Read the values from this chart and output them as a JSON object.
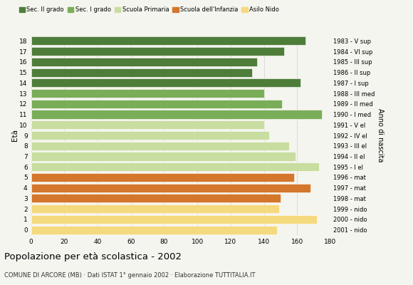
{
  "ages": [
    0,
    1,
    2,
    3,
    4,
    5,
    6,
    7,
    8,
    9,
    10,
    11,
    12,
    13,
    14,
    15,
    16,
    17,
    18
  ],
  "values": [
    148,
    172,
    149,
    150,
    168,
    158,
    173,
    159,
    155,
    143,
    140,
    175,
    151,
    140,
    162,
    133,
    136,
    152,
    165
  ],
  "right_labels": [
    "2001 - nido",
    "2000 - nido",
    "1999 - nido",
    "1998 - mat",
    "1997 - mat",
    "1996 - mat",
    "1995 - I el",
    "1994 - II el",
    "1993 - III el",
    "1992 - IV el",
    "1991 - V el",
    "1990 - I med",
    "1989 - II med",
    "1988 - III med",
    "1987 - I sup",
    "1986 - II sup",
    "1985 - III sup",
    "1984 - VI sup",
    "1983 - V sup"
  ],
  "categories": {
    "Sec. II grado": {
      "ages": [
        14,
        15,
        16,
        17,
        18
      ],
      "color": "#4e7d3a"
    },
    "Sec. I grado": {
      "ages": [
        11,
        12,
        13
      ],
      "color": "#7aad58"
    },
    "Scuola Primaria": {
      "ages": [
        6,
        7,
        8,
        9,
        10
      ],
      "color": "#c8dda0"
    },
    "Scuola dell'Infanzia": {
      "ages": [
        3,
        4,
        5
      ],
      "color": "#d4762b"
    },
    "Asilo Nido": {
      "ages": [
        0,
        1,
        2
      ],
      "color": "#f5d97e"
    }
  },
  "legend_colors": [
    "#4e7d3a",
    "#7aad58",
    "#c8dda0",
    "#d4762b",
    "#f5d97e"
  ],
  "legend_labels": [
    "Sec. II grado",
    "Sec. I grado",
    "Scuola Primaria",
    "Scuola dell'Infanzia",
    "Asilo Nido"
  ],
  "xlim": [
    0,
    180
  ],
  "xticks": [
    0,
    20,
    40,
    60,
    80,
    100,
    120,
    140,
    160,
    180
  ],
  "title": "Popolazione per età scolastica - 2002",
  "subtitle": "COMUNE DI ARCORE (MB) · Dati ISTAT 1° gennaio 2002 · Elaborazione TUTTITALIA.IT",
  "ylabel": "Età",
  "right_axis_label": "Anno di nascita",
  "bar_height": 0.82,
  "bg_color": "#f5f5ef",
  "grid_color": "#bbbbbb"
}
